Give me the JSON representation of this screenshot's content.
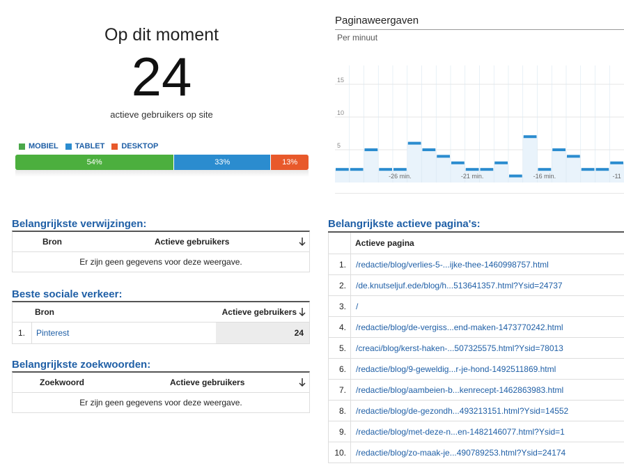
{
  "now": {
    "title": "Op dit moment",
    "count": "24",
    "subtitle": "actieve gebruikers op site"
  },
  "devices": {
    "legend": [
      {
        "label": "MOBIEL",
        "color": "#4aa84a"
      },
      {
        "label": "TABLET",
        "color": "#2b8ccf"
      },
      {
        "label": "DESKTOP",
        "color": "#e8592b"
      }
    ],
    "segments": [
      {
        "label": "54%",
        "percent": 54,
        "color": "#4caf3e"
      },
      {
        "label": "33%",
        "percent": 33,
        "color": "#2b8ccf"
      },
      {
        "label": "13%",
        "percent": 13,
        "color": "#e8592b"
      }
    ]
  },
  "pageviews": {
    "title": "Paginaweergaven",
    "subtitle": "Per minuut"
  },
  "chart_data": {
    "type": "bar",
    "y_ticks": [
      "15",
      "10",
      "5"
    ],
    "y_tick_values": [
      15,
      10,
      5
    ],
    "ylim": [
      0,
      20
    ],
    "x_ticks": [
      "-26 min.",
      "-21 min.",
      "-16 min.",
      "-11"
    ],
    "x_tick_indices": [
      4,
      9,
      14,
      19
    ],
    "values": [
      2,
      2,
      5,
      2,
      2,
      6,
      5,
      4,
      3,
      2,
      2,
      3,
      1,
      7,
      2,
      5,
      4,
      2,
      2,
      3
    ],
    "color": "#2b8ccf"
  },
  "referrals": {
    "title": "Belangrijkste verwijzingen:",
    "col_source": "Bron",
    "col_users": "Actieve gebruikers",
    "empty": "Er zijn geen gegevens voor deze weergave."
  },
  "social": {
    "title": "Beste sociale verkeer:",
    "col_source": "Bron",
    "col_users": "Actieve gebruikers",
    "rows": [
      {
        "num": "1.",
        "source": "Pinterest",
        "users": "24"
      }
    ]
  },
  "keywords": {
    "title": "Belangrijkste zoekwoorden:",
    "col_keyword": "Zoekwoord",
    "col_users": "Actieve gebruikers",
    "empty": "Er zijn geen gegevens voor deze weergave."
  },
  "pages": {
    "title": "Belangrijkste actieve pagina's:",
    "col_page": "Actieve pagina",
    "rows": [
      {
        "num": "1.",
        "page": "/redactie/blog/verlies-5-...ijke-thee-1460998757.html"
      },
      {
        "num": "2.",
        "page": "/de.knutseljuf.ede/blog/h...513641357.html?Ysid=24737"
      },
      {
        "num": "3.",
        "page": "/"
      },
      {
        "num": "4.",
        "page": "/redactie/blog/de-vergiss...end-maken-1473770242.html"
      },
      {
        "num": "5.",
        "page": "/creaci/blog/kerst-haken-...507325575.html?Ysid=78013"
      },
      {
        "num": "6.",
        "page": "/redactie/blog/9-geweldig...r-je-hond-1492511869.html"
      },
      {
        "num": "7.",
        "page": "/redactie/blog/aambeien-b...kenrecept-1462863983.html"
      },
      {
        "num": "8.",
        "page": "/redactie/blog/de-gezondh...493213151.html?Ysid=14552"
      },
      {
        "num": "9.",
        "page": "/redactie/blog/met-deze-n...en-1482146077.html?Ysid=1"
      },
      {
        "num": "10.",
        "page": "/redactie/blog/zo-maak-je...490789253.html?Ysid=24174"
      }
    ]
  }
}
